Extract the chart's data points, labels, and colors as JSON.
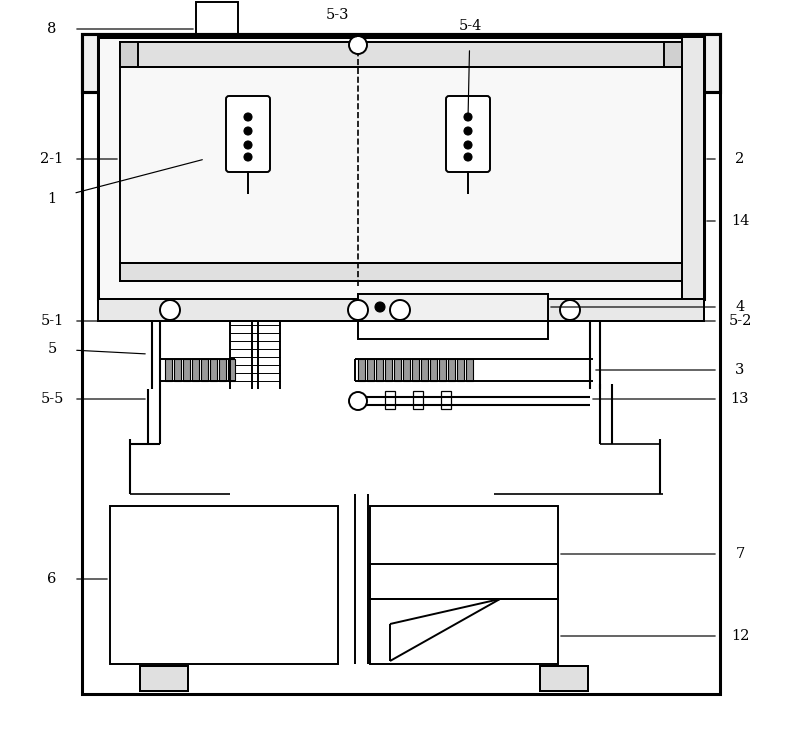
{
  "bg_color": "#ffffff",
  "lc": "#000000",
  "lw": 1.4,
  "tlw": 2.2,
  "figsize": [
    8.03,
    7.29
  ],
  "dpi": 100
}
